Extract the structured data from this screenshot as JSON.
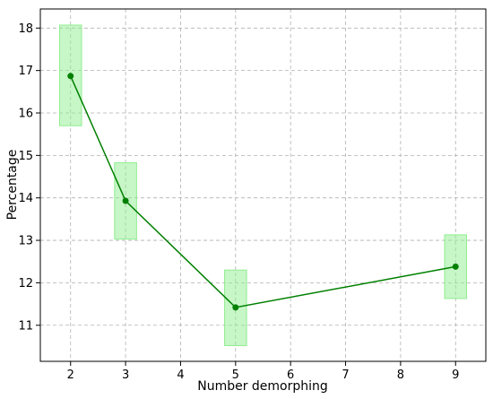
{
  "chart_data": {
    "type": "line",
    "xlabel": "Number demorphing",
    "ylabel": "Percentage",
    "xlim": [
      1.45,
      9.55
    ],
    "ylim": [
      10.15,
      18.45
    ],
    "x_ticks": [
      2,
      3,
      4,
      5,
      6,
      7,
      8,
      9
    ],
    "y_ticks": [
      11,
      12,
      13,
      14,
      15,
      16,
      17,
      18
    ],
    "grid": true,
    "series": [
      {
        "x": [
          2,
          3,
          5,
          9
        ],
        "y": [
          16.87,
          13.93,
          11.42,
          12.38
        ],
        "color": "#008000",
        "marker": "circle"
      }
    ],
    "intervals": [
      {
        "x": 2,
        "low": 15.7,
        "high": 18.07
      },
      {
        "x": 3,
        "low": 13.03,
        "high": 14.83
      },
      {
        "x": 5,
        "low": 10.52,
        "high": 12.3
      },
      {
        "x": 9,
        "low": 11.63,
        "high": 13.13
      }
    ],
    "interval_color": "#90ee90",
    "interval_half_width": 0.2
  }
}
